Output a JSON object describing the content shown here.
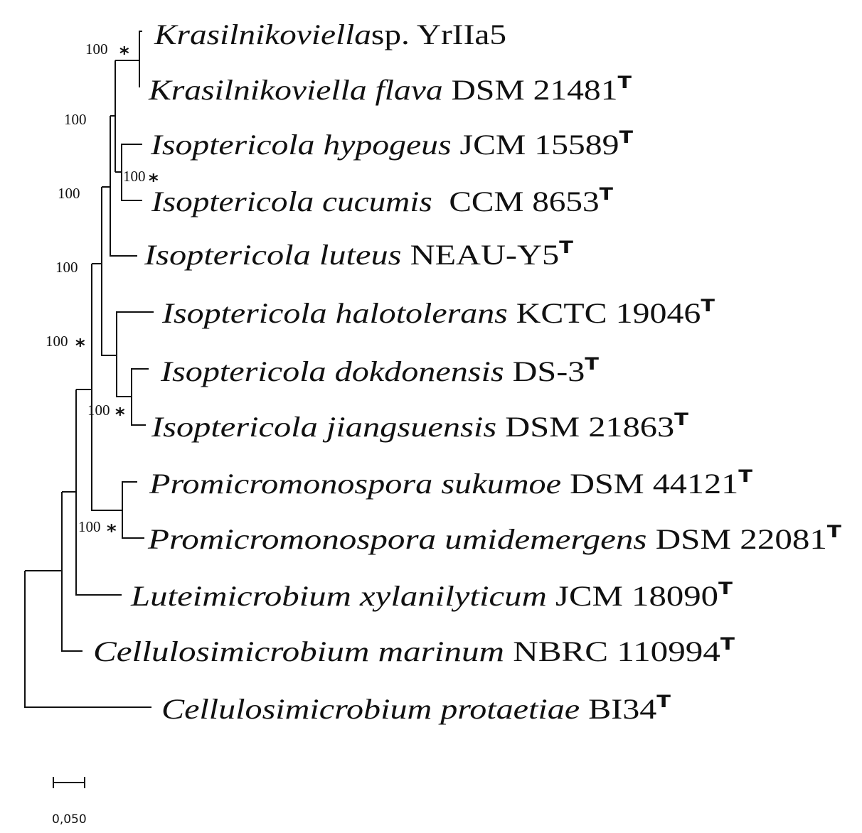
{
  "tips": [
    {
      "species": "Krasilnikoviella",
      "strain": "sp. YrIIa5",
      "type_strain": false
    },
    {
      "species": "Krasilnikoviella flava",
      "strain": " DSM 21481",
      "type_strain": true
    },
    {
      "species": "Isoptericola hypogeus",
      "strain": " JCM 15589",
      "type_strain": true
    },
    {
      "species": "Isoptericola cucumis",
      "strain": "  CCM 8653",
      "type_strain": true
    },
    {
      "species": "Isoptericola luteus",
      "strain": " NEAU-Y5",
      "type_strain": true
    },
    {
      "species": "Isoptericola halotolerans",
      "strain": " KCTC 19046",
      "type_strain": true
    },
    {
      "species": "Isoptericola dokdonensis",
      "strain": " DS-3",
      "type_strain": true
    },
    {
      "species": "Isoptericola jiangsuensis",
      "strain": " DSM 21863",
      "type_strain": true
    },
    {
      "species": "Promicromonospora sukumoe",
      "strain": " DSM 44121",
      "type_strain": true
    },
    {
      "species": "Promicromonospora umidemergens",
      "strain": " DSM 22081",
      "type_strain": true
    },
    {
      "species": "Luteimicrobium xylanilyticum",
      "strain": " JCM 18090",
      "type_strain": true
    },
    {
      "species": "Cellulosimicrobium marinum",
      "strain": " NBRC 110994",
      "type_strain": true
    },
    {
      "species": "Cellulosimicrobium protaetiae",
      "strain": " BI34",
      "type_strain": true
    }
  ],
  "type_strain_mark": "T",
  "bootstrap": [
    {
      "value": "100",
      "star": "*",
      "clade": "Krasilnikoviella"
    },
    {
      "value": "100",
      "star": "",
      "clade": "Krasilnikoviella + I. hypogeus/I. cucumis"
    },
    {
      "value": "100",
      "star": "*",
      "clade": "I. hypogeus + I. cucumis"
    },
    {
      "value": "100",
      "star": "",
      "clade": "+ I. luteus"
    },
    {
      "value": "100",
      "star": "",
      "clade": "+ I. halotolerans clade"
    },
    {
      "value": "100",
      "star": "*",
      "clade": "Isoptericola/Krasilnikoviella + Promicromonospora"
    },
    {
      "value": "100",
      "star": "*",
      "clade": "I. dokdonensis + I. jiangsuensis"
    },
    {
      "value": "100",
      "star": "*",
      "clade": "Promicromonospora"
    }
  ],
  "scale_bar": {
    "label": "0,050",
    "value": 0.05
  }
}
